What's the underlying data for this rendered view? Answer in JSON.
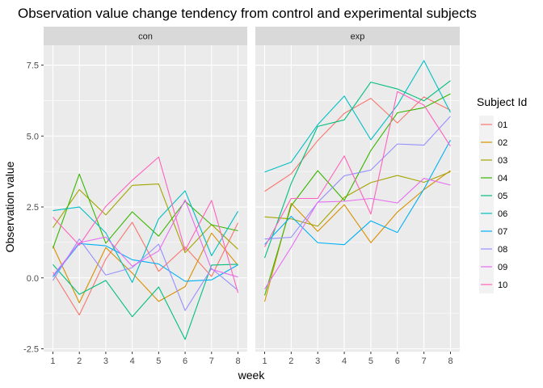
{
  "chart_data": {
    "type": "line",
    "title": "Observation value change tendency from control and experimental subjects",
    "xlabel": "week",
    "ylabel": "Observation value",
    "x": [
      1,
      2,
      3,
      4,
      5,
      6,
      7,
      8
    ],
    "x_ticks": [
      "1",
      "2",
      "3",
      "4",
      "5",
      "6",
      "7",
      "8"
    ],
    "ylim": [
      -2.6,
      8.2
    ],
    "y_ticks": [
      -2.5,
      0.0,
      2.5,
      5.0,
      7.5
    ],
    "y_tick_labels": [
      "-2.5",
      "0.0",
      "2.5",
      "5.0",
      "7.5"
    ],
    "grid": true,
    "legend": {
      "title": "Subject Id",
      "placement": "right",
      "entries": [
        "01",
        "02",
        "03",
        "04",
        "05",
        "06",
        "07",
        "08",
        "09",
        "10"
      ]
    },
    "colors": [
      "#F8766D",
      "#D89000",
      "#A3A500",
      "#39B600",
      "#00BF7D",
      "#00BFC4",
      "#00B0F6",
      "#9590FF",
      "#E76BF3",
      "#FF62BC"
    ],
    "panels": [
      {
        "label": "con",
        "series": [
          {
            "name": "01",
            "values": [
              0.2,
              -1.31,
              0.66,
              1.96,
              0.23,
              1.09,
              0.05,
              1.94
            ]
          },
          {
            "name": "02",
            "values": [
              1.13,
              -0.88,
              1.07,
              0.17,
              -0.83,
              -0.31,
              1.58,
              0.44
            ]
          },
          {
            "name": "03",
            "values": [
              1.77,
              3.11,
              2.22,
              3.26,
              3.31,
              0.89,
              1.88,
              1.01
            ]
          },
          {
            "name": "04",
            "values": [
              1.04,
              3.66,
              1.22,
              2.33,
              1.47,
              2.7,
              1.87,
              1.66
            ]
          },
          {
            "name": "05",
            "values": [
              0.47,
              -0.58,
              -0.09,
              -1.37,
              -0.32,
              -2.17,
              0.45,
              0.48
            ]
          },
          {
            "name": "06",
            "values": [
              2.37,
              2.5,
              1.59,
              -0.16,
              2.08,
              3.07,
              0.78,
              2.35
            ]
          },
          {
            "name": "07",
            "values": [
              0.03,
              1.21,
              1.13,
              0.64,
              0.49,
              -0.12,
              -0.07,
              0.46
            ]
          },
          {
            "name": "08",
            "values": [
              -0.09,
              1.37,
              0.1,
              0.36,
              1.19,
              -1.15,
              0.33,
              -0.44
            ]
          },
          {
            "name": "09",
            "values": [
              0.08,
              1.24,
              1.44,
              0.41,
              0.95,
              2.75,
              0.3,
              0.03
            ]
          },
          {
            "name": "10",
            "values": [
              2.14,
              1.15,
              2.52,
              3.44,
              4.26,
              0.97,
              2.73,
              -0.53
            ]
          }
        ]
      },
      {
        "label": "exp",
        "series": [
          {
            "name": "01",
            "values": [
              3.05,
              3.67,
              4.84,
              5.8,
              6.33,
              5.46,
              6.38,
              5.91
            ]
          },
          {
            "name": "02",
            "values": [
              -0.84,
              2.63,
              1.64,
              2.58,
              1.24,
              2.32,
              3.11,
              3.78
            ]
          },
          {
            "name": "03",
            "values": [
              2.15,
              2.08,
              1.82,
              2.84,
              3.36,
              3.61,
              3.37,
              3.74
            ]
          },
          {
            "name": "04",
            "values": [
              -0.62,
              2.54,
              3.78,
              2.73,
              4.49,
              5.82,
              6.0,
              6.49
            ]
          },
          {
            "name": "05",
            "values": [
              0.7,
              3.33,
              5.34,
              5.57,
              6.9,
              6.66,
              6.24,
              6.95
            ]
          },
          {
            "name": "06",
            "values": [
              3.73,
              4.08,
              5.4,
              6.41,
              4.87,
              6.09,
              7.66,
              5.83
            ]
          },
          {
            "name": "07",
            "values": [
              1.18,
              2.17,
              1.24,
              1.17,
              2.01,
              1.6,
              3.13,
              4.86
            ]
          },
          {
            "name": "08",
            "values": [
              1.37,
              1.43,
              2.66,
              3.6,
              3.8,
              4.72,
              4.68,
              5.7
            ]
          },
          {
            "name": "09",
            "values": [
              -0.4,
              1.08,
              2.67,
              2.7,
              2.8,
              2.64,
              3.51,
              3.27
            ]
          },
          {
            "name": "10",
            "values": [
              1.09,
              2.8,
              2.8,
              4.3,
              2.25,
              6.57,
              6.09,
              4.64
            ]
          }
        ]
      }
    ]
  }
}
